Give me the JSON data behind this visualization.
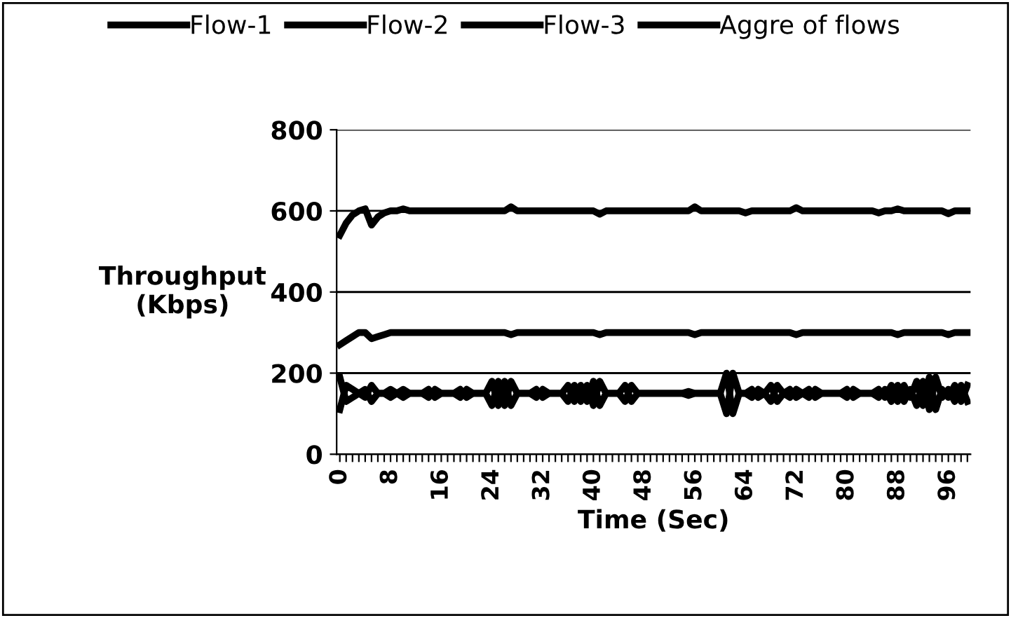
{
  "chart_data": {
    "type": "line",
    "xlabel": "Time (Sec)",
    "ylabel": "Throughput\n(Kbps)",
    "categories": [
      "0",
      null,
      null,
      null,
      null,
      null,
      null,
      null,
      "8",
      null,
      null,
      null,
      null,
      null,
      null,
      null,
      "16",
      null,
      null,
      null,
      null,
      null,
      null,
      null,
      "24",
      null,
      null,
      null,
      null,
      null,
      null,
      null,
      "32",
      null,
      null,
      null,
      null,
      null,
      null,
      null,
      "40",
      null,
      null,
      null,
      null,
      null,
      null,
      null,
      "48",
      null,
      null,
      null,
      null,
      null,
      null,
      null,
      "56",
      null,
      null,
      null,
      null,
      null,
      null,
      null,
      "64",
      null,
      null,
      null,
      null,
      null,
      null,
      null,
      "72",
      null,
      null,
      null,
      null,
      null,
      null,
      null,
      "80",
      null,
      null,
      null,
      null,
      null,
      null,
      null,
      "88",
      null,
      null,
      null,
      null,
      null,
      null,
      null,
      "96",
      null,
      null,
      null
    ],
    "series": [
      {
        "name": "Flow-1",
        "color": "#000000",
        "values": [
          110,
          170,
          160,
          150,
          140,
          170,
          150,
          150,
          140,
          150,
          160,
          150,
          150,
          150,
          160,
          140,
          150,
          150,
          150,
          160,
          140,
          150,
          150,
          150,
          180,
          120,
          180,
          120,
          150,
          150,
          150,
          160,
          140,
          150,
          150,
          150,
          170,
          130,
          170,
          130,
          180,
          120,
          150,
          150,
          150,
          130,
          170,
          150,
          150,
          150,
          150,
          150,
          150,
          150,
          150,
          145,
          150,
          150,
          150,
          150,
          150,
          200,
          100,
          150,
          150,
          160,
          140,
          150,
          170,
          130,
          150,
          160,
          140,
          150,
          160,
          140,
          150,
          150,
          150,
          150,
          160,
          140,
          150,
          150,
          150,
          160,
          140,
          170,
          130,
          170,
          140,
          180,
          120,
          190,
          110,
          160,
          140,
          170,
          130,
          170
        ]
      },
      {
        "name": "Flow-2",
        "color": "#000000",
        "values": [
          190,
          130,
          140,
          150,
          160,
          130,
          150,
          150,
          160,
          150,
          140,
          150,
          150,
          150,
          140,
          160,
          150,
          150,
          150,
          140,
          160,
          150,
          150,
          150,
          120,
          180,
          120,
          180,
          150,
          150,
          150,
          140,
          160,
          150,
          150,
          150,
          130,
          170,
          130,
          170,
          120,
          180,
          150,
          150,
          150,
          170,
          130,
          150,
          150,
          150,
          150,
          150,
          150,
          150,
          150,
          155,
          150,
          150,
          150,
          150,
          150,
          100,
          200,
          150,
          150,
          140,
          160,
          150,
          130,
          170,
          150,
          140,
          160,
          150,
          140,
          160,
          150,
          150,
          150,
          150,
          140,
          160,
          150,
          150,
          150,
          140,
          160,
          130,
          170,
          130,
          160,
          120,
          180,
          110,
          190,
          140,
          160,
          130,
          170,
          130
        ]
      },
      {
        "name": "Flow-3",
        "color": "#000000",
        "values": [
          270,
          280,
          290,
          300,
          300,
          285,
          290,
          295,
          300,
          300,
          300,
          300,
          300,
          300,
          300,
          300,
          300,
          300,
          300,
          300,
          300,
          300,
          300,
          300,
          300,
          300,
          300,
          295,
          300,
          300,
          300,
          300,
          300,
          300,
          300,
          300,
          300,
          300,
          300,
          300,
          300,
          295,
          300,
          300,
          300,
          300,
          300,
          300,
          300,
          300,
          300,
          300,
          300,
          300,
          300,
          300,
          295,
          300,
          300,
          300,
          300,
          300,
          300,
          300,
          300,
          300,
          300,
          300,
          300,
          300,
          300,
          300,
          295,
          300,
          300,
          300,
          300,
          300,
          300,
          300,
          300,
          300,
          300,
          300,
          300,
          300,
          300,
          300,
          295,
          300,
          300,
          300,
          300,
          300,
          300,
          300,
          295,
          300,
          300,
          300
        ]
      },
      {
        "name": "Aggre of flows",
        "color": "#000000",
        "values": [
          540,
          570,
          590,
          600,
          605,
          565,
          585,
          595,
          600,
          600,
          605,
          600,
          600,
          600,
          600,
          600,
          600,
          600,
          600,
          600,
          600,
          600,
          600,
          600,
          600,
          600,
          600,
          610,
          600,
          600,
          600,
          600,
          600,
          600,
          600,
          600,
          600,
          600,
          600,
          600,
          600,
          592,
          600,
          600,
          600,
          600,
          600,
          600,
          600,
          600,
          600,
          600,
          600,
          600,
          600,
          600,
          610,
          600,
          600,
          600,
          600,
          600,
          600,
          600,
          595,
          600,
          600,
          600,
          600,
          600,
          600,
          600,
          608,
          600,
          600,
          600,
          600,
          600,
          600,
          600,
          600,
          600,
          600,
          600,
          600,
          595,
          600,
          600,
          605,
          600,
          600,
          600,
          600,
          600,
          600,
          600,
          593,
          600,
          600,
          600
        ]
      }
    ],
    "ylim": [
      0,
      800
    ],
    "yticks": [
      0,
      200,
      400,
      600,
      800
    ],
    "grid": "y",
    "legend": "top",
    "line_style": "solid",
    "marker": "none"
  }
}
